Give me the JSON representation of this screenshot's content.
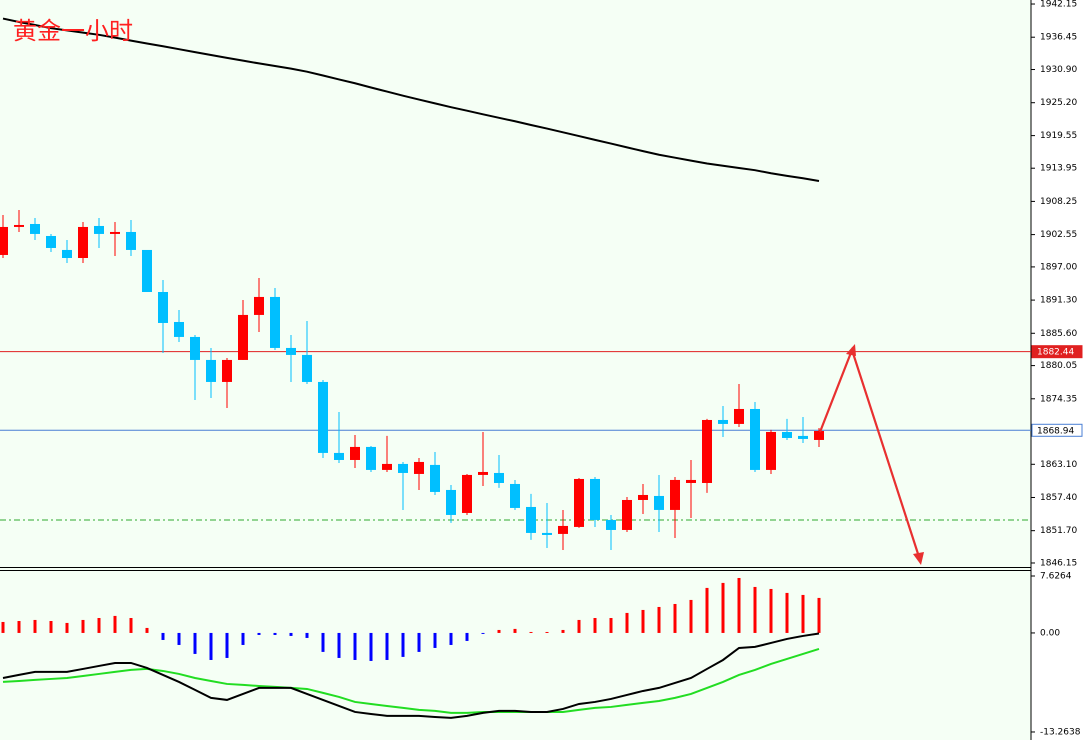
{
  "chart_data": [
    {
      "type": "candlestick",
      "title": "黄金一小时",
      "title_color": "#ff2020",
      "ylim": [
        1845.46,
        1942.84
      ],
      "yticks": [
        1942.15,
        1936.45,
        {
          "value": 1930.9,
          "label": "1930.90"
        },
        {
          "value": 1925.2,
          "label": "1925.20"
        },
        1919.55,
        1913.95,
        1908.25,
        1902.55,
        {
          "value": 1897,
          "label": "1897.00"
        },
        {
          "value": 1891.3,
          "label": "1891.30"
        },
        {
          "value": 1885.6,
          "label": "1885.60"
        },
        1880.05,
        1874.35,
        {
          "value": 1863.1,
          "label": "1863.10"
        },
        {
          "value": 1857.4,
          "label": "1857.40"
        },
        {
          "value": 1851.7,
          "label": "1851.70"
        },
        1846.15
      ],
      "up_color": "#ff0000",
      "down_color": "#00bfff",
      "open": [
        1899.05,
        1903.86,
        1904.37,
        1902.31,
        1899.91,
        1898.53,
        1904.03,
        1902.66,
        1903.0,
        1899.91,
        1892.69,
        1887.54,
        1884.97,
        1881.02,
        1877.24,
        1881.02,
        1888.75,
        1891.84,
        1883.08,
        1881.88,
        1877.24,
        1865.05,
        1863.84,
        1866.08,
        1862.13,
        1863.16,
        1861.44,
        1862.99,
        1858.69,
        1854.74,
        1861.27,
        1861.61,
        1859.72,
        1855.77,
        1851.31,
        1851.14,
        1852.34,
        1860.58,
        1853.54,
        1851.82,
        1856.97,
        1857.66,
        1855.26,
        1859.89,
        1859.89,
        1870.71,
        1870.03,
        1872.6,
        1862.13,
        1868.65,
        1867.97,
        1867.28
      ],
      "high": [
        1905.92,
        1906.78,
        1905.4,
        1902.66,
        1901.62,
        1904.72,
        1905.4,
        1904.72,
        1905.06,
        1899.91,
        1894.76,
        1889.6,
        1885.31,
        1883.08,
        1881.36,
        1891.32,
        1895.1,
        1893.38,
        1885.31,
        1887.71,
        1877.58,
        1872.09,
        1868.14,
        1866.25,
        1867.97,
        1863.5,
        1864.19,
        1865.22,
        1859.55,
        1861.44,
        1868.65,
        1864.7,
        1860.41,
        1858.01,
        1856.46,
        1855.26,
        1860.75,
        1860.92,
        1854.4,
        1857.49,
        1859.72,
        1861.27,
        1860.92,
        1863.84,
        1870.89,
        1873.12,
        1876.9,
        1873.8,
        1869.0,
        1870.89,
        1871.23,
        1869.34
      ],
      "low": [
        1898.53,
        1903.0,
        1901.62,
        1899.56,
        1897.67,
        1897.67,
        1900.25,
        1898.88,
        1898.88,
        1892.69,
        1882.22,
        1884.11,
        1874.15,
        1874.49,
        1872.77,
        1881.02,
        1885.83,
        1882.73,
        1877.24,
        1876.9,
        1864.19,
        1863.33,
        1862.47,
        1861.78,
        1861.78,
        1855.26,
        1858.69,
        1857.83,
        1853.03,
        1854.4,
        1859.38,
        1859.04,
        1855.26,
        1850.11,
        1848.73,
        1848.39,
        1852.17,
        1852.34,
        1848.39,
        1851.48,
        1854.57,
        1851.48,
        1850.45,
        1853.88,
        1858.18,
        1867.79,
        1869.51,
        1861.78,
        1861.44,
        1867.28,
        1866.76,
        1866.08
      ],
      "close": [
        1903.86,
        1904.2,
        1902.66,
        1900.25,
        1898.53,
        1903.86,
        1902.66,
        1903.0,
        1899.91,
        1892.69,
        1887.37,
        1884.97,
        1881.02,
        1877.24,
        1881.02,
        1888.75,
        1891.84,
        1883.08,
        1881.88,
        1877.24,
        1865.05,
        1863.84,
        1866.08,
        1862.13,
        1863.16,
        1861.61,
        1863.5,
        1858.35,
        1854.4,
        1861.27,
        1861.78,
        1859.89,
        1855.6,
        1851.31,
        1850.96,
        1852.51,
        1860.58,
        1853.54,
        1851.82,
        1856.97,
        1857.83,
        1855.26,
        1860.41,
        1860.41,
        1870.71,
        1870.03,
        1872.6,
        1862.13,
        1868.65,
        1867.62,
        1867.45,
        1868.82
      ],
      "ma": {
        "color": "#000000",
        "values": [
          1939.65,
          1939.06,
          1938.55,
          1938.0,
          1937.62,
          1937.24,
          1936.86,
          1936.37,
          1935.87,
          1935.37,
          1934.89,
          1934.39,
          1933.89,
          1933.39,
          1932.9,
          1932.42,
          1931.95,
          1931.51,
          1931.06,
          1930.53,
          1929.87,
          1929.2,
          1928.54,
          1927.81,
          1927.11,
          1926.41,
          1925.74,
          1925.08,
          1924.43,
          1923.83,
          1923.21,
          1922.61,
          1922.01,
          1921.37,
          1920.76,
          1920.12,
          1919.47,
          1918.82,
          1918.18,
          1917.53,
          1916.89,
          1916.26,
          1915.76,
          1915.26,
          1914.76,
          1914.38,
          1913.99,
          1913.61,
          1913.08,
          1912.63,
          1912.22,
          1911.76
        ]
      },
      "hlines": [
        {
          "value": 1882.44,
          "color": "#e02020",
          "style": "solid"
        },
        {
          "value": 1868.94,
          "color": "#4a7fd4",
          "style": "solid"
        },
        {
          "value": 1853.54,
          "color": "#2ea82e",
          "style": "dashdot"
        }
      ]
    },
    {
      "type": "macd",
      "ylim": [
        -14.07,
        8.43
      ],
      "yticks": [
        7.6264,
        {
          "value": 0,
          "label": "0.00"
        },
        -13.2638
      ],
      "histogram": {
        "up_color": "#ff0000",
        "down_color": "#0000ff",
        "values": [
          1.47,
          1.6,
          1.74,
          1.6,
          1.34,
          1.74,
          2.0,
          2.28,
          2.0,
          0.67,
          -0.94,
          -1.61,
          -2.81,
          -3.62,
          -3.35,
          -1.61,
          -0.27,
          -0.27,
          -0.4,
          -0.67,
          -2.54,
          -3.35,
          -3.62,
          -3.75,
          -3.62,
          -3.21,
          -2.54,
          -2.01,
          -1.61,
          -1.07,
          -0.13,
          0.4,
          0.54,
          0.13,
          0.13,
          0.4,
          1.74,
          2.0,
          2.0,
          2.68,
          3.08,
          3.48,
          3.88,
          4.42,
          6.03,
          6.7,
          7.36,
          6.16,
          5.89,
          5.36,
          5.09,
          4.69
        ]
      },
      "macd": {
        "color": "#000000",
        "values": [
          -6.03,
          -5.62,
          -5.22,
          -5.22,
          -5.22,
          -4.82,
          -4.42,
          -4.02,
          -4.02,
          -4.69,
          -5.62,
          -6.56,
          -7.63,
          -8.7,
          -8.97,
          -8.17,
          -7.36,
          -7.36,
          -7.36,
          -8.17,
          -8.97,
          -9.78,
          -10.58,
          -10.85,
          -11.11,
          -11.11,
          -11.11,
          -11.25,
          -11.38,
          -11.11,
          -10.71,
          -10.44,
          -10.44,
          -10.58,
          -10.58,
          -10.18,
          -9.51,
          -9.24,
          -8.84,
          -8.3,
          -7.77,
          -7.36,
          -6.7,
          -6.03,
          -4.82,
          -3.62,
          -2.01,
          -1.87,
          -1.34,
          -0.8,
          -0.4,
          -0.07
        ]
      },
      "signal": {
        "color": "#22dd22",
        "values": [
          -6.56,
          -6.43,
          -6.29,
          -6.16,
          -6.03,
          -5.76,
          -5.49,
          -5.22,
          -4.95,
          -4.82,
          -5.09,
          -5.49,
          -6.03,
          -6.43,
          -6.83,
          -6.96,
          -7.1,
          -7.23,
          -7.36,
          -7.5,
          -8.03,
          -8.57,
          -9.24,
          -9.51,
          -9.78,
          -10.04,
          -10.31,
          -10.44,
          -10.71,
          -10.71,
          -10.58,
          -10.58,
          -10.58,
          -10.58,
          -10.58,
          -10.58,
          -10.31,
          -10.04,
          -9.91,
          -9.64,
          -9.37,
          -9.11,
          -8.7,
          -8.17,
          -7.36,
          -6.56,
          -5.62,
          -4.95,
          -4.15,
          -3.48,
          -2.81,
          -2.14
        ]
      }
    }
  ]
}
